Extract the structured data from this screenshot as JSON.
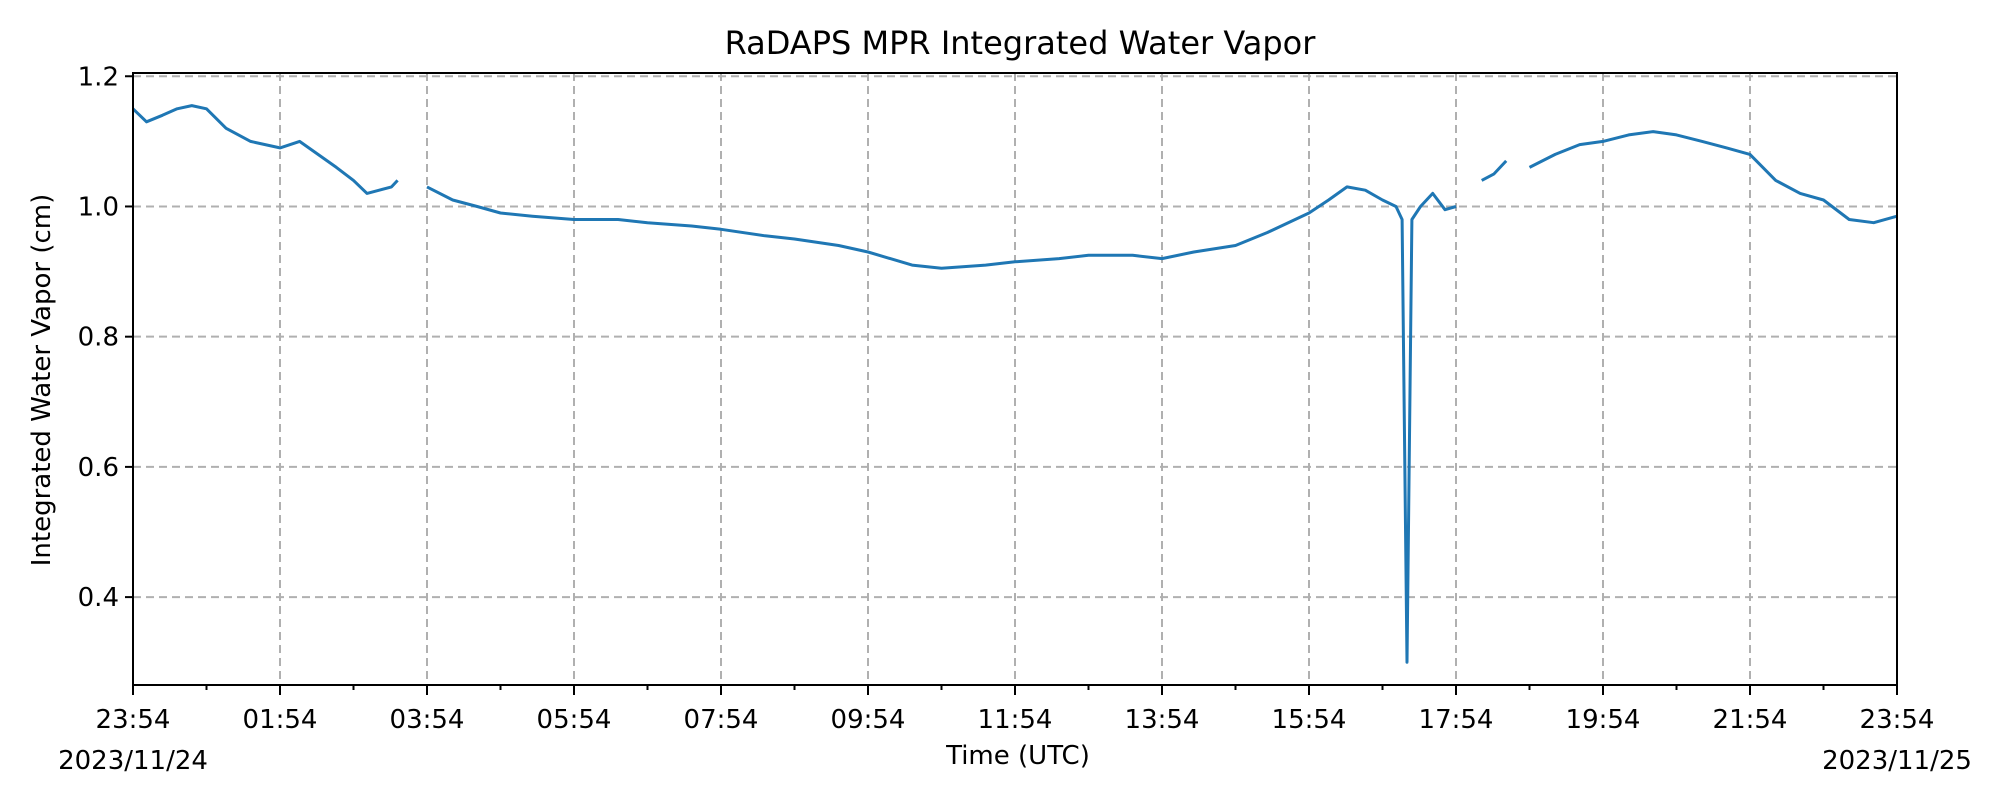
{
  "chart_data": {
    "type": "line",
    "title": "RaDAPS MPR Integrated Water Vapor",
    "xlabel": "Time (UTC)",
    "ylabel": "Integrated Water Vapor (cm)",
    "x_range": [
      "2023-11-24T23:54",
      "2023-11-25T23:54"
    ],
    "ylim": [
      0.265,
      1.205
    ],
    "x_ticks": [
      "23:54",
      "01:54",
      "03:54",
      "05:54",
      "07:54",
      "09:54",
      "11:54",
      "13:54",
      "15:54",
      "17:54",
      "19:54",
      "21:54",
      "23:54"
    ],
    "x_tick_dates": [
      "2023/11/24",
      "",
      "",
      "",
      "",
      "",
      "",
      "",
      "",
      "",
      "",
      "",
      "2023/11/25"
    ],
    "y_ticks": [
      "0.4",
      "0.6",
      "0.8",
      "1.0",
      "1.2"
    ],
    "y_tick_values": [
      0.4,
      0.6,
      0.8,
      1.0,
      1.2
    ],
    "grid": true,
    "line_color": "#1f77b4",
    "series": [
      {
        "x": [
          "2023-11-24T23:54",
          "2023-11-25T00:05",
          "2023-11-25T00:18",
          "2023-11-25T00:30",
          "2023-11-25T00:42",
          "2023-11-25T00:54",
          "2023-11-25T01:10",
          "2023-11-25T01:30",
          "2023-11-25T01:54",
          "2023-11-25T02:10",
          "2023-11-25T02:25",
          "2023-11-25T02:40",
          "2023-11-25T02:54",
          "2023-11-25T03:05",
          "2023-11-25T03:15",
          "2023-11-25T03:25",
          "2023-11-25T03:30"
        ],
        "values": [
          1.15,
          1.13,
          1.14,
          1.15,
          1.155,
          1.15,
          1.12,
          1.1,
          1.09,
          1.1,
          1.08,
          1.06,
          1.04,
          1.02,
          1.025,
          1.03,
          1.04
        ]
      },
      {
        "x": [
          "2023-11-25T03:54",
          "2023-11-25T04:15",
          "2023-11-25T04:35",
          "2023-11-25T04:54",
          "2023-11-25T05:20",
          "2023-11-25T05:54",
          "2023-11-25T06:30",
          "2023-11-25T06:54",
          "2023-11-25T07:30",
          "2023-11-25T07:54",
          "2023-11-25T08:30",
          "2023-11-25T08:54",
          "2023-11-25T09:30",
          "2023-11-25T09:54",
          "2023-11-25T10:30",
          "2023-11-25T10:54",
          "2023-11-25T11:30",
          "2023-11-25T11:54",
          "2023-11-25T12:30",
          "2023-11-25T12:54",
          "2023-11-25T13:30",
          "2023-11-25T13:54",
          "2023-11-25T14:20",
          "2023-11-25T14:54",
          "2023-11-25T15:20",
          "2023-11-25T15:54",
          "2023-11-25T16:10",
          "2023-11-25T16:25",
          "2023-11-25T16:40",
          "2023-11-25T16:54",
          "2023-11-25T17:05",
          "2023-11-25T17:10",
          "2023-11-25T17:14",
          "2023-11-25T17:18",
          "2023-11-25T17:25",
          "2023-11-25T17:35",
          "2023-11-25T17:45",
          "2023-11-25T17:54"
        ],
        "values": [
          1.03,
          1.01,
          1.0,
          0.99,
          0.985,
          0.98,
          0.98,
          0.975,
          0.97,
          0.965,
          0.955,
          0.95,
          0.94,
          0.93,
          0.91,
          0.905,
          0.91,
          0.915,
          0.92,
          0.925,
          0.925,
          0.92,
          0.93,
          0.94,
          0.96,
          0.99,
          1.01,
          1.03,
          1.025,
          1.01,
          1.0,
          0.98,
          0.3,
          0.98,
          1.0,
          1.02,
          0.995,
          1.0
        ]
      },
      {
        "x": [
          "2023-11-25T18:15",
          "2023-11-25T18:25",
          "2023-11-25T18:35"
        ],
        "values": [
          1.04,
          1.05,
          1.07
        ]
      },
      {
        "x": [
          "2023-11-25T18:54",
          "2023-11-25T19:15",
          "2023-11-25T19:35",
          "2023-11-25T19:54",
          "2023-11-25T20:15",
          "2023-11-25T20:35",
          "2023-11-25T20:54",
          "2023-11-25T21:15",
          "2023-11-25T21:35",
          "2023-11-25T21:54",
          "2023-11-25T22:15",
          "2023-11-25T22:35",
          "2023-11-25T22:54",
          "2023-11-25T23:15",
          "2023-11-25T23:35",
          "2023-11-25T23:54"
        ],
        "values": [
          1.06,
          1.08,
          1.095,
          1.1,
          1.11,
          1.115,
          1.11,
          1.1,
          1.09,
          1.08,
          1.04,
          1.02,
          1.01,
          0.98,
          0.975,
          0.985
        ]
      }
    ]
  }
}
